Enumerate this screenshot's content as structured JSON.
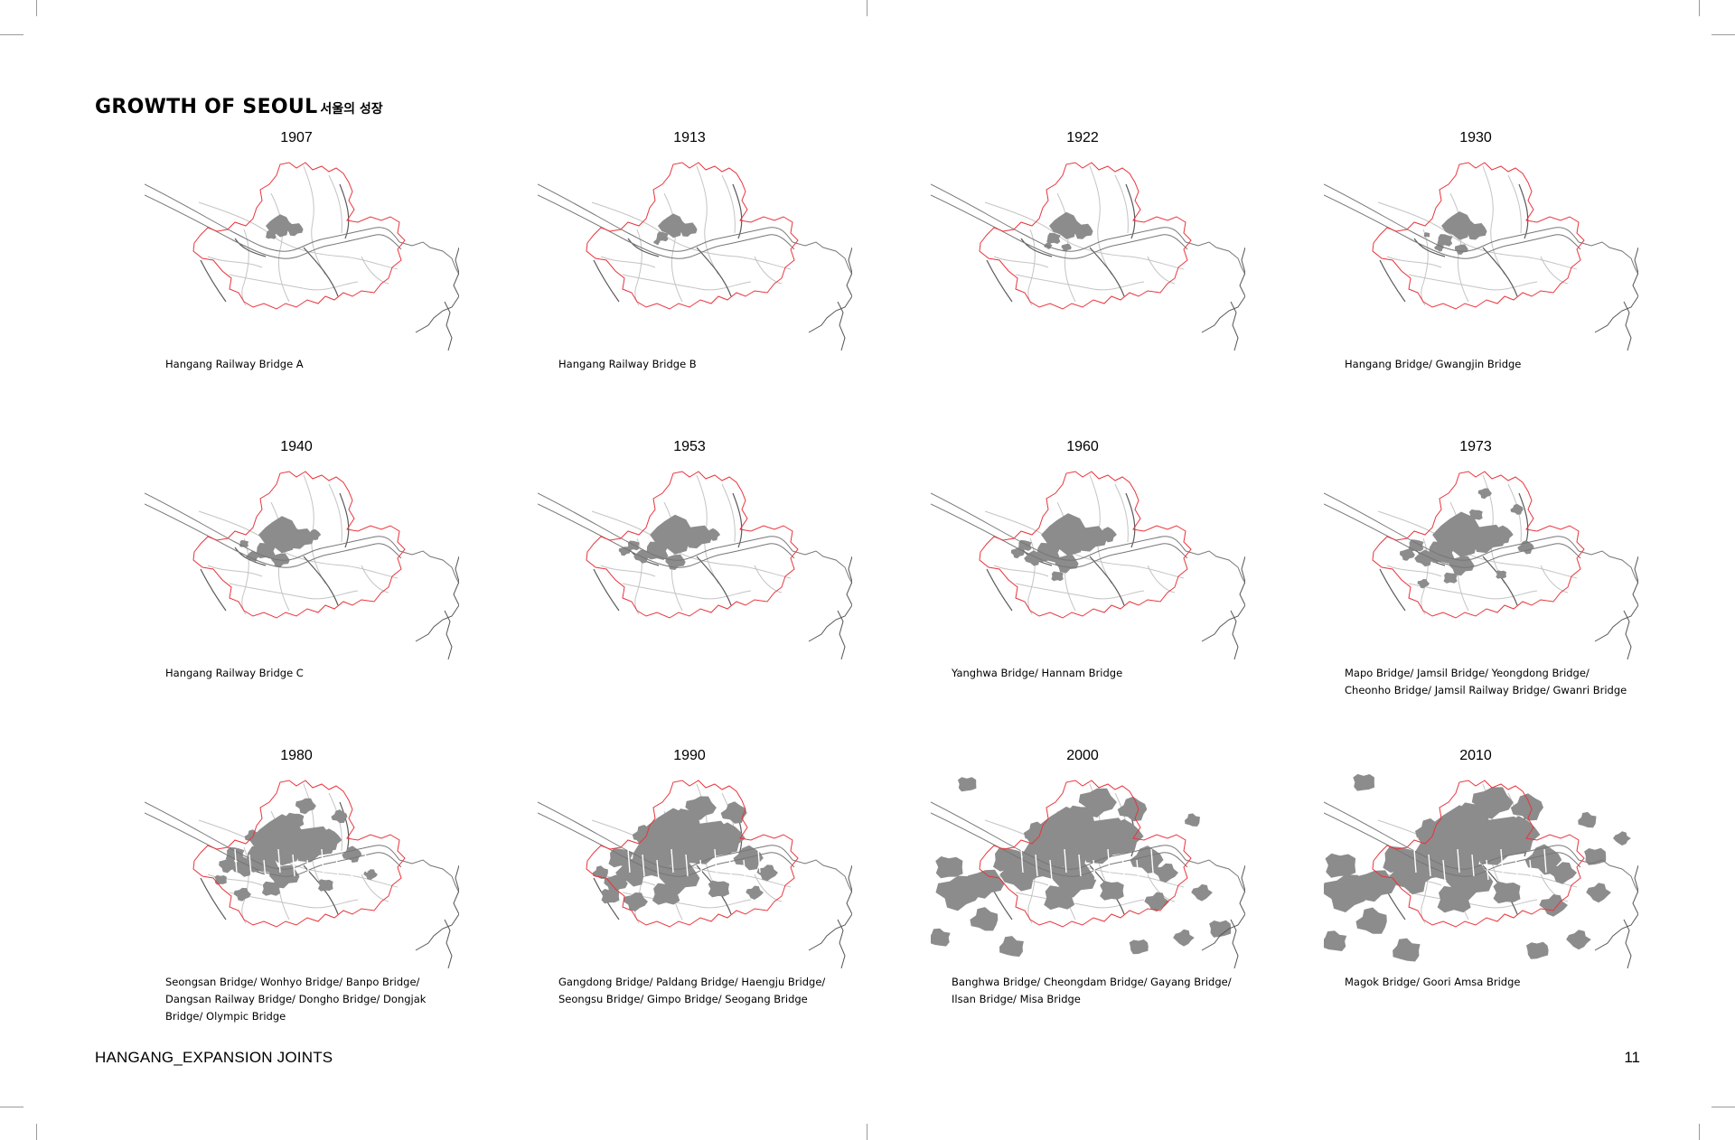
{
  "header": {
    "title_en": "GROWTH OF SEOUL",
    "title_ko": "서울의 성장"
  },
  "footer": {
    "project": "HANGANG_EXPANSION JOINTS",
    "page_number": "11"
  },
  "panels": [
    {
      "year": "1907",
      "caption": [
        "Hangang Railway Bridge A"
      ]
    },
    {
      "year": "1913",
      "caption": [
        "Hangang Railway Bridge B"
      ]
    },
    {
      "year": "1922",
      "caption": []
    },
    {
      "year": "1930",
      "caption": [
        "Hangang Bridge/ Gwangjin Bridge"
      ]
    },
    {
      "year": "1940",
      "caption": [
        "Hangang Railway Bridge C"
      ]
    },
    {
      "year": "1953",
      "caption": []
    },
    {
      "year": "1960",
      "caption": [
        "Yanghwa Bridge/ Hannam Bridge"
      ]
    },
    {
      "year": "1973",
      "caption": [
        "Mapo Bridge/ Jamsil Bridge/ Yeongdong Bridge/",
        "Cheonho Bridge/ Jamsil Railway Bridge/ Gwanri Bridge"
      ]
    },
    {
      "year": "1980",
      "caption": [
        "Seongsan Bridge/ Wonhyo Bridge/ Banpo Bridge/",
        "Dangsan Railway Bridge/ Dongho Bridge/ Dongjak",
        "Bridge/ Olympic Bridge"
      ]
    },
    {
      "year": "1990",
      "caption": [
        "Gangdong Bridge/ Paldang Bridge/ Haengju Bridge/",
        "Seongsu Bridge/ Gimpo Bridge/ Seogang Bridge"
      ]
    },
    {
      "year": "2000",
      "caption": [
        "Banghwa Bridge/ Cheongdam Bridge/ Gayang Bridge/",
        "Ilsan Bridge/ Misa Bridge"
      ]
    },
    {
      "year": "2010",
      "caption": [
        "Magok Bridge/ Goori Amsa Bridge"
      ]
    }
  ],
  "colors": {
    "boundary": "#e8343c",
    "urban": "#8c8c8c",
    "river": "#777777",
    "roads": "#c4c4c4",
    "text": "#000000"
  }
}
